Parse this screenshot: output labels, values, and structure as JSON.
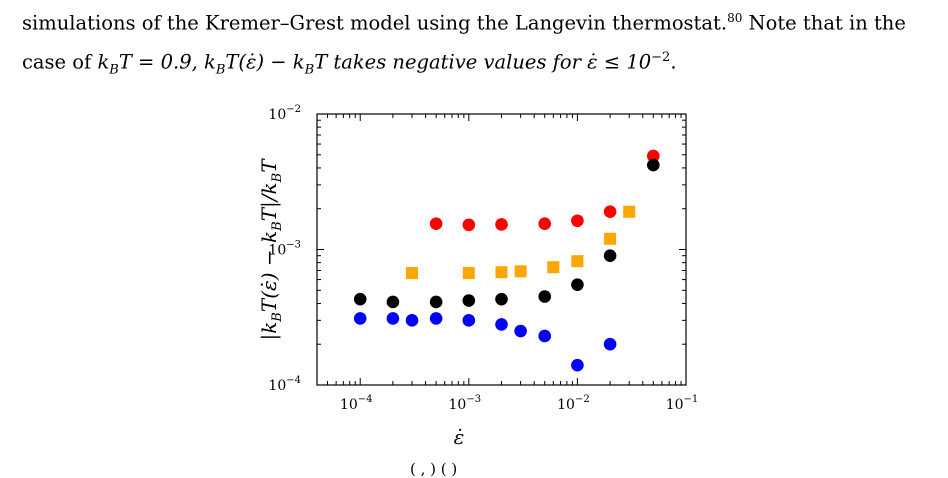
{
  "text": {
    "line1": "simulations of the Kremer–Grest model using the Langevin thermostat.",
    "line1_ref": "80",
    "line1_tail": " Note that in the",
    "line2_a": "case of ",
    "line2_kbt": "k",
    "line2_b": "T = 0.9, ",
    "line2_c": "k",
    "line2_d": "T(ε̇) − k",
    "line2_e": "T takes negative values for ε̇ ≤ 10",
    "line2_exp": "−2",
    "line2_end": ".",
    "caption_fragment": "( , ) ( )"
  },
  "chart_data": {
    "type": "scatter",
    "xlabel": "ε̇",
    "ylabel": "|k_BT(ε̇) − k_BT|/k_BT",
    "xscale": "log",
    "yscale": "log",
    "xlim": [
      4e-05,
      0.1
    ],
    "ylim": [
      0.0001,
      0.01
    ],
    "xticks": [
      {
        "value": 0.0001,
        "label": "10",
        "exp": "−4"
      },
      {
        "value": 0.001,
        "label": "10",
        "exp": "−3"
      },
      {
        "value": 0.01,
        "label": "10",
        "exp": "−2"
      },
      {
        "value": 0.1,
        "label": "10",
        "exp": "−1"
      }
    ],
    "yticks": [
      {
        "value": 0.0001,
        "label": "10",
        "exp": "−4"
      },
      {
        "value": 0.001,
        "label": "10",
        "exp": "−3"
      },
      {
        "value": 0.01,
        "label": "10",
        "exp": "−2"
      }
    ],
    "series": [
      {
        "marker": "circle",
        "color": "#ff0000",
        "x": [
          0.0005,
          0.001,
          0.002,
          0.005,
          0.01,
          0.02,
          0.05
        ],
        "y": [
          0.00155,
          0.00152,
          0.00153,
          0.00155,
          0.00163,
          0.0019,
          0.0049
        ]
      },
      {
        "marker": "square",
        "color": "#ffa500",
        "x": [
          0.0003,
          0.001,
          0.002,
          0.003,
          0.006,
          0.01,
          0.02,
          0.03
        ],
        "y": [
          0.00067,
          0.00067,
          0.00068,
          0.00069,
          0.00074,
          0.00082,
          0.0012,
          0.0019
        ]
      },
      {
        "marker": "circle",
        "color": "#000000",
        "x": [
          0.0001,
          0.0002,
          0.0005,
          0.001,
          0.002,
          0.005,
          0.01,
          0.02,
          0.05
        ],
        "y": [
          0.00043,
          0.00041,
          0.00041,
          0.00042,
          0.00043,
          0.00045,
          0.00055,
          0.0009,
          0.0042
        ]
      },
      {
        "marker": "circle",
        "color": "#0000ff",
        "x": [
          0.0001,
          0.0002,
          0.0003,
          0.0005,
          0.001,
          0.002,
          0.003,
          0.005,
          0.01,
          0.02
        ],
        "y": [
          0.00031,
          0.00031,
          0.0003,
          0.00031,
          0.0003,
          0.00028,
          0.00025,
          0.00023,
          0.00014,
          0.0002
        ]
      }
    ]
  }
}
